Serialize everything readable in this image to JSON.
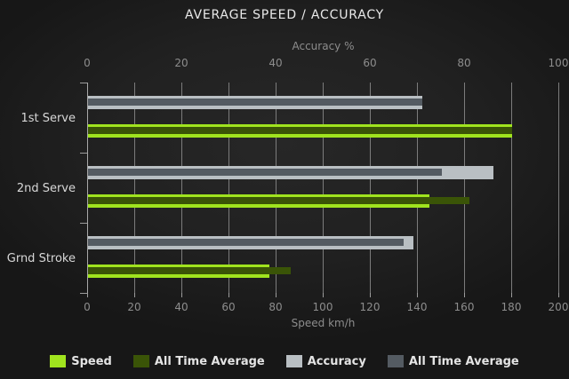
{
  "title": "AVERAGE SPEED / ACCURACY",
  "chart_data": {
    "type": "bar",
    "orientation": "horizontal",
    "title": "AVERAGE SPEED / ACCURACY",
    "categories": [
      "1st Serve",
      "2nd Serve",
      "Grnd Stroke"
    ],
    "series": [
      {
        "name": "Speed",
        "axis": "bottom",
        "color": "#a0e41e",
        "values": [
          180,
          145,
          77
        ]
      },
      {
        "name": "All Time Average",
        "axis": "bottom",
        "color": "#3a5407",
        "values": [
          180,
          162,
          86
        ]
      },
      {
        "name": "Accuracy",
        "axis": "top",
        "color": "#b9bfc3",
        "values": [
          71,
          86,
          69
        ]
      },
      {
        "name": "All Time Average",
        "axis": "top",
        "color": "#545b62",
        "values": [
          71,
          75,
          67
        ]
      }
    ],
    "top_axis": {
      "label": "Accuracy %",
      "min": 0,
      "max": 100,
      "ticks": [
        0,
        20,
        40,
        60,
        80,
        100
      ]
    },
    "bottom_axis": {
      "label": "Speed km/h",
      "min": 0,
      "max": 200,
      "ticks": [
        0,
        20,
        40,
        60,
        80,
        100,
        120,
        140,
        160,
        180,
        200
      ]
    },
    "grid": true,
    "legend_position": "bottom"
  },
  "legend": [
    {
      "label": "Speed",
      "color": "#a0e41e"
    },
    {
      "label": "All Time Average",
      "color": "#3a5407"
    },
    {
      "label": "Accuracy",
      "color": "#b9bfc3"
    },
    {
      "label": "All Time Average",
      "color": "#545b62"
    }
  ],
  "colors": {
    "background": "#212121",
    "gridline": "#7c7c7c",
    "axis_line": "#a8a8a8",
    "title_text": "#e9e9e9",
    "tick_text": "#8d8d8d",
    "category_text": "#d8d8d8"
  }
}
